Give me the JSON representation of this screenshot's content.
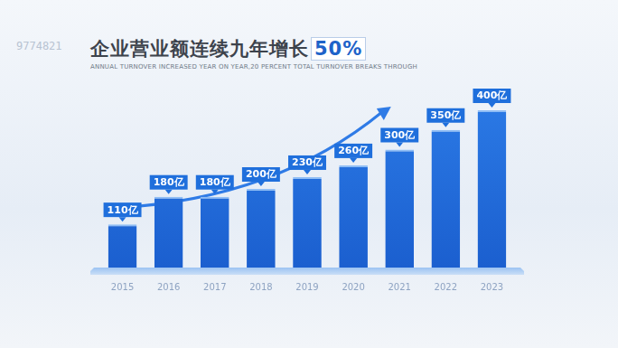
{
  "chart_data": {
    "type": "bar",
    "title": "企业营业额连续九年增长50%",
    "subtitle": "ANNUAL TURNOVER INCREASED YEAR ON YEAR,20 PERCENT TOTAL TURNOVER BREAKS THROUGH",
    "annotations": [
      "9774821"
    ],
    "categories": [
      "2015",
      "2016",
      "2017",
      "2018",
      "2019",
      "2020",
      "2021",
      "2022",
      "2023"
    ],
    "values": [
      110,
      180,
      180,
      200,
      230,
      260,
      300,
      350,
      400
    ],
    "value_labels": [
      "110亿",
      "180亿",
      "180亿",
      "200亿",
      "230亿",
      "260亿",
      "300亿",
      "350亿",
      "400亿"
    ],
    "color": "#2a78e4",
    "ylim": [
      0,
      400
    ],
    "grid": false,
    "data_labels": true,
    "tick_labels": "x"
  }
}
